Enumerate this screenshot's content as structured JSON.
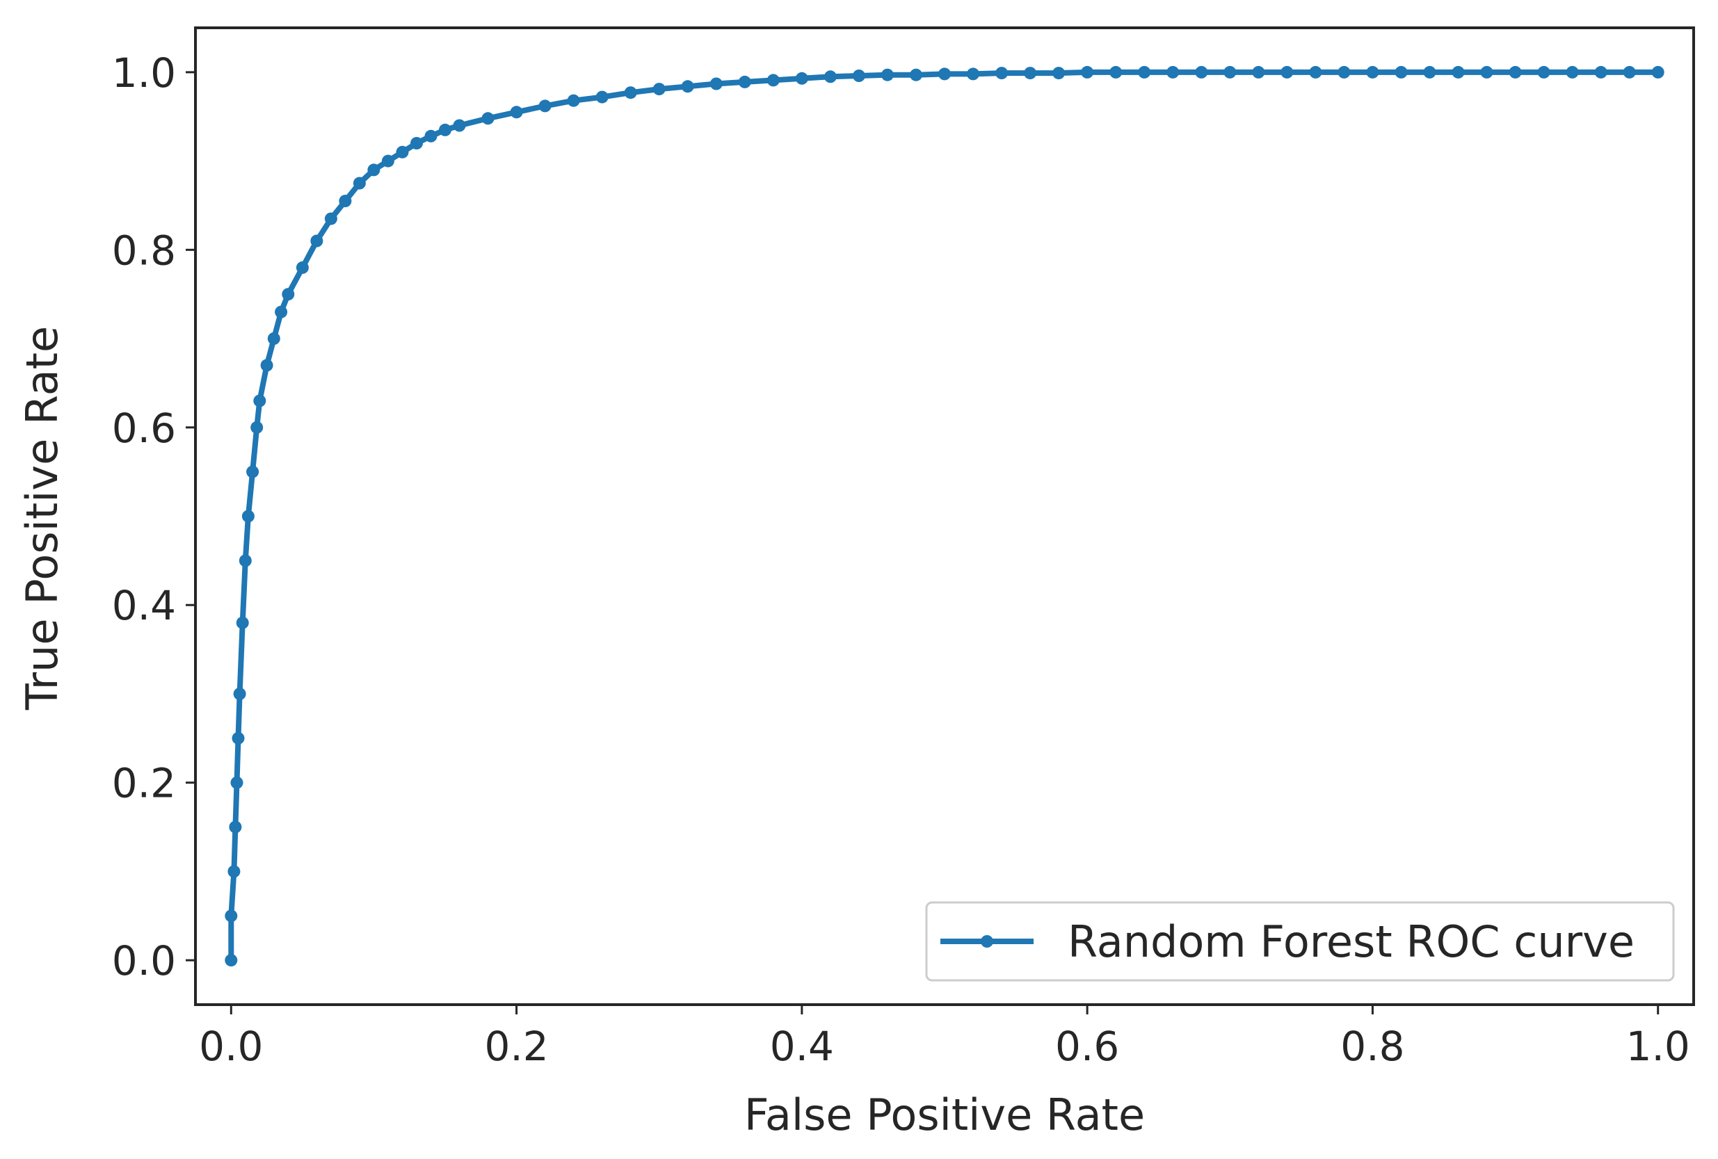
{
  "chart_data": {
    "type": "line",
    "title": "",
    "xlabel": "False Positive Rate",
    "ylabel": "True Positive Rate",
    "xlim": [
      -0.025,
      1.025
    ],
    "ylim": [
      -0.05,
      1.05
    ],
    "xticks": [
      0.0,
      0.2,
      0.4,
      0.6,
      0.8,
      1.0
    ],
    "yticks": [
      0.0,
      0.2,
      0.4,
      0.6,
      0.8,
      1.0
    ],
    "xtick_labels": [
      "0.0",
      "0.2",
      "0.4",
      "0.6",
      "0.8",
      "1.0"
    ],
    "ytick_labels": [
      "0.0",
      "0.2",
      "0.4",
      "0.6",
      "0.8",
      "1.0"
    ],
    "grid": false,
    "legend_position": "lower-right",
    "series": [
      {
        "name": "Random Forest ROC curve",
        "color": "#1f77b4",
        "marker": "point",
        "x": [
          0.0,
          0.0,
          0.002,
          0.003,
          0.004,
          0.005,
          0.006,
          0.008,
          0.01,
          0.012,
          0.015,
          0.018,
          0.02,
          0.025,
          0.03,
          0.035,
          0.04,
          0.05,
          0.06,
          0.07,
          0.08,
          0.09,
          0.1,
          0.11,
          0.12,
          0.13,
          0.14,
          0.15,
          0.16,
          0.18,
          0.2,
          0.22,
          0.24,
          0.26,
          0.28,
          0.3,
          0.32,
          0.34,
          0.36,
          0.38,
          0.4,
          0.42,
          0.44,
          0.46,
          0.48,
          0.5,
          0.52,
          0.54,
          0.56,
          0.58,
          0.6,
          0.62,
          0.64,
          0.66,
          0.68,
          0.7,
          0.72,
          0.74,
          0.76,
          0.78,
          0.8,
          0.82,
          0.84,
          0.86,
          0.88,
          0.9,
          0.92,
          0.94,
          0.96,
          0.98,
          1.0
        ],
        "y": [
          0.0,
          0.05,
          0.1,
          0.15,
          0.2,
          0.25,
          0.3,
          0.38,
          0.45,
          0.5,
          0.55,
          0.6,
          0.63,
          0.67,
          0.7,
          0.73,
          0.75,
          0.78,
          0.81,
          0.835,
          0.855,
          0.875,
          0.89,
          0.9,
          0.91,
          0.92,
          0.928,
          0.935,
          0.94,
          0.948,
          0.955,
          0.962,
          0.968,
          0.972,
          0.977,
          0.981,
          0.984,
          0.987,
          0.989,
          0.991,
          0.993,
          0.995,
          0.996,
          0.997,
          0.997,
          0.998,
          0.998,
          0.999,
          0.999,
          0.999,
          1.0,
          1.0,
          1.0,
          1.0,
          1.0,
          1.0,
          1.0,
          1.0,
          1.0,
          1.0,
          1.0,
          1.0,
          1.0,
          1.0,
          1.0,
          1.0,
          1.0,
          1.0,
          1.0,
          1.0,
          1.0
        ]
      }
    ]
  }
}
